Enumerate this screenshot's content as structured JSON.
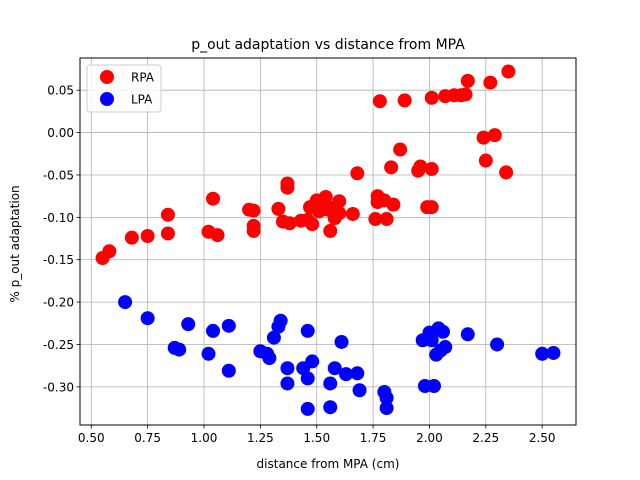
{
  "chart_data": {
    "type": "scatter",
    "title": "p_out adaptation vs distance from MPA",
    "xlabel": "distance from MPA (cm)",
    "ylabel": "% p_out adaptation",
    "xlim": [
      0.45,
      2.65
    ],
    "ylim": [
      -0.345,
      0.088
    ],
    "x_ticks": [
      0.5,
      0.75,
      1.0,
      1.25,
      1.5,
      1.75,
      2.0,
      2.25,
      2.5
    ],
    "x_tick_labels": [
      "0.50",
      "0.75",
      "1.00",
      "1.25",
      "1.50",
      "1.75",
      "2.00",
      "2.25",
      "2.50"
    ],
    "y_ticks": [
      -0.3,
      -0.25,
      -0.2,
      -0.15,
      -0.1,
      -0.05,
      0.0,
      0.05
    ],
    "y_tick_labels": [
      "-0.30",
      "-0.25",
      "-0.20",
      "-0.15",
      "-0.10",
      "-0.05",
      "0.00",
      "0.05"
    ],
    "grid": true,
    "legend_position": "top-left",
    "series": [
      {
        "name": "RPA",
        "color": "#ff0000",
        "points": [
          [
            0.55,
            -0.148
          ],
          [
            0.58,
            -0.14
          ],
          [
            0.68,
            -0.124
          ],
          [
            0.75,
            -0.122
          ],
          [
            0.84,
            -0.119
          ],
          [
            0.84,
            -0.097
          ],
          [
            1.02,
            -0.117
          ],
          [
            1.04,
            -0.078
          ],
          [
            1.06,
            -0.121
          ],
          [
            1.2,
            -0.091
          ],
          [
            1.22,
            -0.092
          ],
          [
            1.22,
            -0.11
          ],
          [
            1.22,
            -0.116
          ],
          [
            1.33,
            -0.09
          ],
          [
            1.35,
            -0.105
          ],
          [
            1.37,
            -0.06
          ],
          [
            1.37,
            -0.065
          ],
          [
            1.38,
            -0.107
          ],
          [
            1.43,
            -0.104
          ],
          [
            1.46,
            -0.103
          ],
          [
            1.47,
            -0.088
          ],
          [
            1.48,
            -0.108
          ],
          [
            1.5,
            -0.08
          ],
          [
            1.51,
            -0.093
          ],
          [
            1.52,
            -0.084
          ],
          [
            1.54,
            -0.076
          ],
          [
            1.55,
            -0.091
          ],
          [
            1.56,
            -0.116
          ],
          [
            1.57,
            -0.089
          ],
          [
            1.58,
            -0.101
          ],
          [
            1.6,
            -0.095
          ],
          [
            1.6,
            -0.081
          ],
          [
            1.66,
            -0.096
          ],
          [
            1.68,
            -0.048
          ],
          [
            1.76,
            -0.102
          ],
          [
            1.77,
            -0.075
          ],
          [
            1.77,
            -0.082
          ],
          [
            1.78,
            0.037
          ],
          [
            1.8,
            -0.08
          ],
          [
            1.81,
            -0.102
          ],
          [
            1.83,
            -0.041
          ],
          [
            1.84,
            -0.085
          ],
          [
            1.87,
            -0.02
          ],
          [
            1.89,
            0.038
          ],
          [
            1.95,
            -0.045
          ],
          [
            1.96,
            -0.04
          ],
          [
            1.99,
            -0.088
          ],
          [
            2.01,
            -0.088
          ],
          [
            2.01,
            -0.043
          ],
          [
            2.01,
            0.041
          ],
          [
            2.07,
            0.043
          ],
          [
            2.11,
            0.044
          ],
          [
            2.14,
            0.044
          ],
          [
            2.16,
            0.045
          ],
          [
            2.17,
            0.061
          ],
          [
            2.24,
            -0.006
          ],
          [
            2.25,
            -0.033
          ],
          [
            2.27,
            0.059
          ],
          [
            2.29,
            -0.003
          ],
          [
            2.34,
            -0.047
          ],
          [
            2.35,
            0.072
          ]
        ]
      },
      {
        "name": "LPA",
        "color": "#0000ff",
        "points": [
          [
            0.65,
            -0.2
          ],
          [
            0.75,
            -0.219
          ],
          [
            0.87,
            -0.254
          ],
          [
            0.89,
            -0.256
          ],
          [
            0.93,
            -0.226
          ],
          [
            1.02,
            -0.261
          ],
          [
            1.04,
            -0.234
          ],
          [
            1.11,
            -0.228
          ],
          [
            1.11,
            -0.281
          ],
          [
            1.25,
            -0.258
          ],
          [
            1.28,
            -0.261
          ],
          [
            1.29,
            -0.266
          ],
          [
            1.31,
            -0.242
          ],
          [
            1.33,
            -0.229
          ],
          [
            1.34,
            -0.222
          ],
          [
            1.37,
            -0.278
          ],
          [
            1.37,
            -0.296
          ],
          [
            1.44,
            -0.278
          ],
          [
            1.46,
            -0.29
          ],
          [
            1.46,
            -0.326
          ],
          [
            1.46,
            -0.234
          ],
          [
            1.48,
            -0.27
          ],
          [
            1.56,
            -0.296
          ],
          [
            1.56,
            -0.324
          ],
          [
            1.58,
            -0.278
          ],
          [
            1.61,
            -0.247
          ],
          [
            1.63,
            -0.285
          ],
          [
            1.68,
            -0.284
          ],
          [
            1.69,
            -0.304
          ],
          [
            1.8,
            -0.306
          ],
          [
            1.81,
            -0.313
          ],
          [
            1.81,
            -0.325
          ],
          [
            1.97,
            -0.245
          ],
          [
            1.98,
            -0.299
          ],
          [
            2.0,
            -0.236
          ],
          [
            2.01,
            -0.245
          ],
          [
            2.02,
            -0.299
          ],
          [
            2.03,
            -0.262
          ],
          [
            2.04,
            -0.231
          ],
          [
            2.05,
            -0.257
          ],
          [
            2.06,
            -0.235
          ],
          [
            2.07,
            -0.253
          ],
          [
            2.17,
            -0.238
          ],
          [
            2.3,
            -0.25
          ],
          [
            2.5,
            -0.261
          ],
          [
            2.55,
            -0.26
          ]
        ]
      }
    ]
  }
}
